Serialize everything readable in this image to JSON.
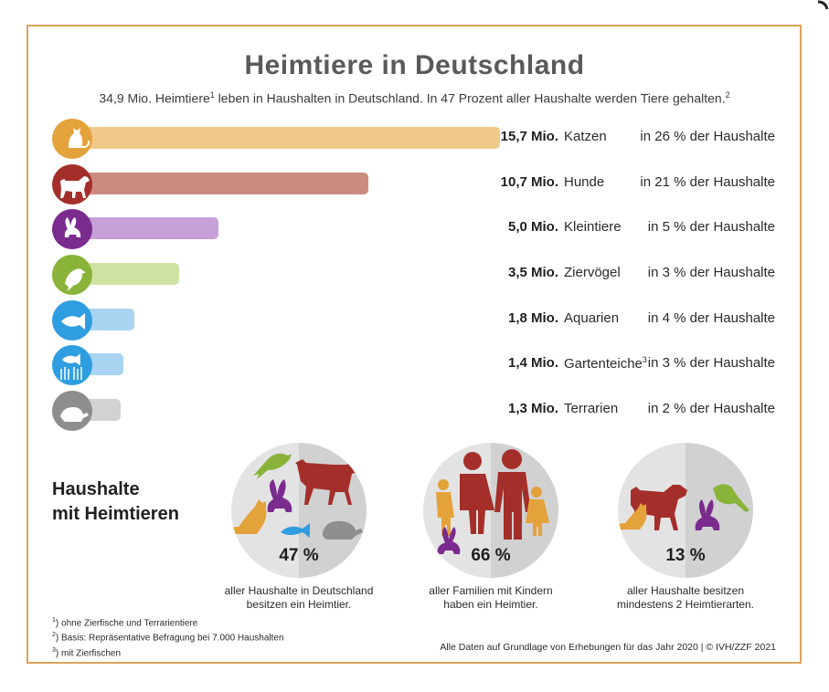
{
  "chart_data": {
    "type": "bar",
    "title": "Heimtiere in Deutschland",
    "subtitle": {
      "part1": "34,9 Mio. Heimtiere",
      "sup1": "1",
      "part2": " leben in Haushalten in Deutschland. In 47 Prozent aller Haushalte werden Tiere gehalten.",
      "sup2": "2"
    },
    "unit": "Mio.",
    "series": [
      {
        "categories": [
          "Katzen",
          "Hunde",
          "Kleintiere",
          "Ziervögel",
          "Aquarien",
          "Gartenteiche",
          "Terrarien"
        ],
        "values": [
          15.7,
          10.7,
          5.0,
          3.5,
          1.8,
          1.4,
          1.3
        ]
      }
    ],
    "rows": [
      {
        "value_label": "15,7 Mio.",
        "label": "Katzen",
        "sup": "",
        "share": "in 26 % der Haushalte",
        "color": "#f0c98a",
        "icon_color": "#e4a23a",
        "icon": "cat-icon"
      },
      {
        "value_label": "10,7 Mio.",
        "label": "Hunde",
        "sup": "",
        "share": "in 21 % der Haushalte",
        "color": "#cc8b80",
        "icon_color": "#a42f2a",
        "icon": "dog-icon"
      },
      {
        "value_label": "5,0 Mio.",
        "label": "Kleintiere",
        "sup": "",
        "share": "in 5 % der Haushalte",
        "color": "#c8a0d8",
        "icon_color": "#7a2c8e",
        "icon": "rabbit-icon"
      },
      {
        "value_label": "3,5 Mio.",
        "label": "Ziervögel",
        "sup": "",
        "share": "in 3 % der Haushalte",
        "color": "#cfe2a2",
        "icon_color": "#8ab33a",
        "icon": "bird-icon"
      },
      {
        "value_label": "1,8 Mio.",
        "label": "Aquarien",
        "sup": "",
        "share": "in 4 % der Haushalte",
        "color": "#a8d4f2",
        "icon_color": "#2f9ee0",
        "icon": "fish-icon"
      },
      {
        "value_label": "1,4 Mio.",
        "label": "Gartenteiche",
        "sup": "3",
        "share": "in 3 % der Haushalte",
        "color": "#a8d4f2",
        "icon_color": "#2f9ee0",
        "icon": "pond-fish-icon"
      },
      {
        "value_label": "1,3 Mio.",
        "label": "Terrarien",
        "sup": "",
        "share": "in 2 % der Haushalte",
        "color": "#d2d2d2",
        "icon_color": "#8e8e8e",
        "icon": "turtle-icon"
      }
    ],
    "xlim": [
      0,
      15.7
    ]
  },
  "households": {
    "title_line1": "Haushalte",
    "title_line2": "mit Heimtieren",
    "circles": [
      {
        "percent": "47 %",
        "caption_line1": "aller Haushalte in Deutschland",
        "caption_line2": "besitzen ein Heimtier."
      },
      {
        "percent": "66 %",
        "caption_line1": "aller Familien mit Kindern",
        "caption_line2": "haben ein Heimtier."
      },
      {
        "percent": "13 %",
        "caption_line1": "aller Haushalte besitzen",
        "caption_line2": "mindestens 2 Heimtierarten."
      }
    ]
  },
  "footnotes": [
    {
      "num": "1",
      "text": "ohne Zierfische und Terrarientiere"
    },
    {
      "num": "2",
      "text": "Basis: Repräsentative Befragung bei 7.000 Haushalten"
    },
    {
      "num": "3",
      "text": "mit Zierfischen"
    }
  ],
  "source": "Alle Daten auf Grundlage von Erhebungen für das Jahr 2020 | © IVH/ZZF 2021"
}
